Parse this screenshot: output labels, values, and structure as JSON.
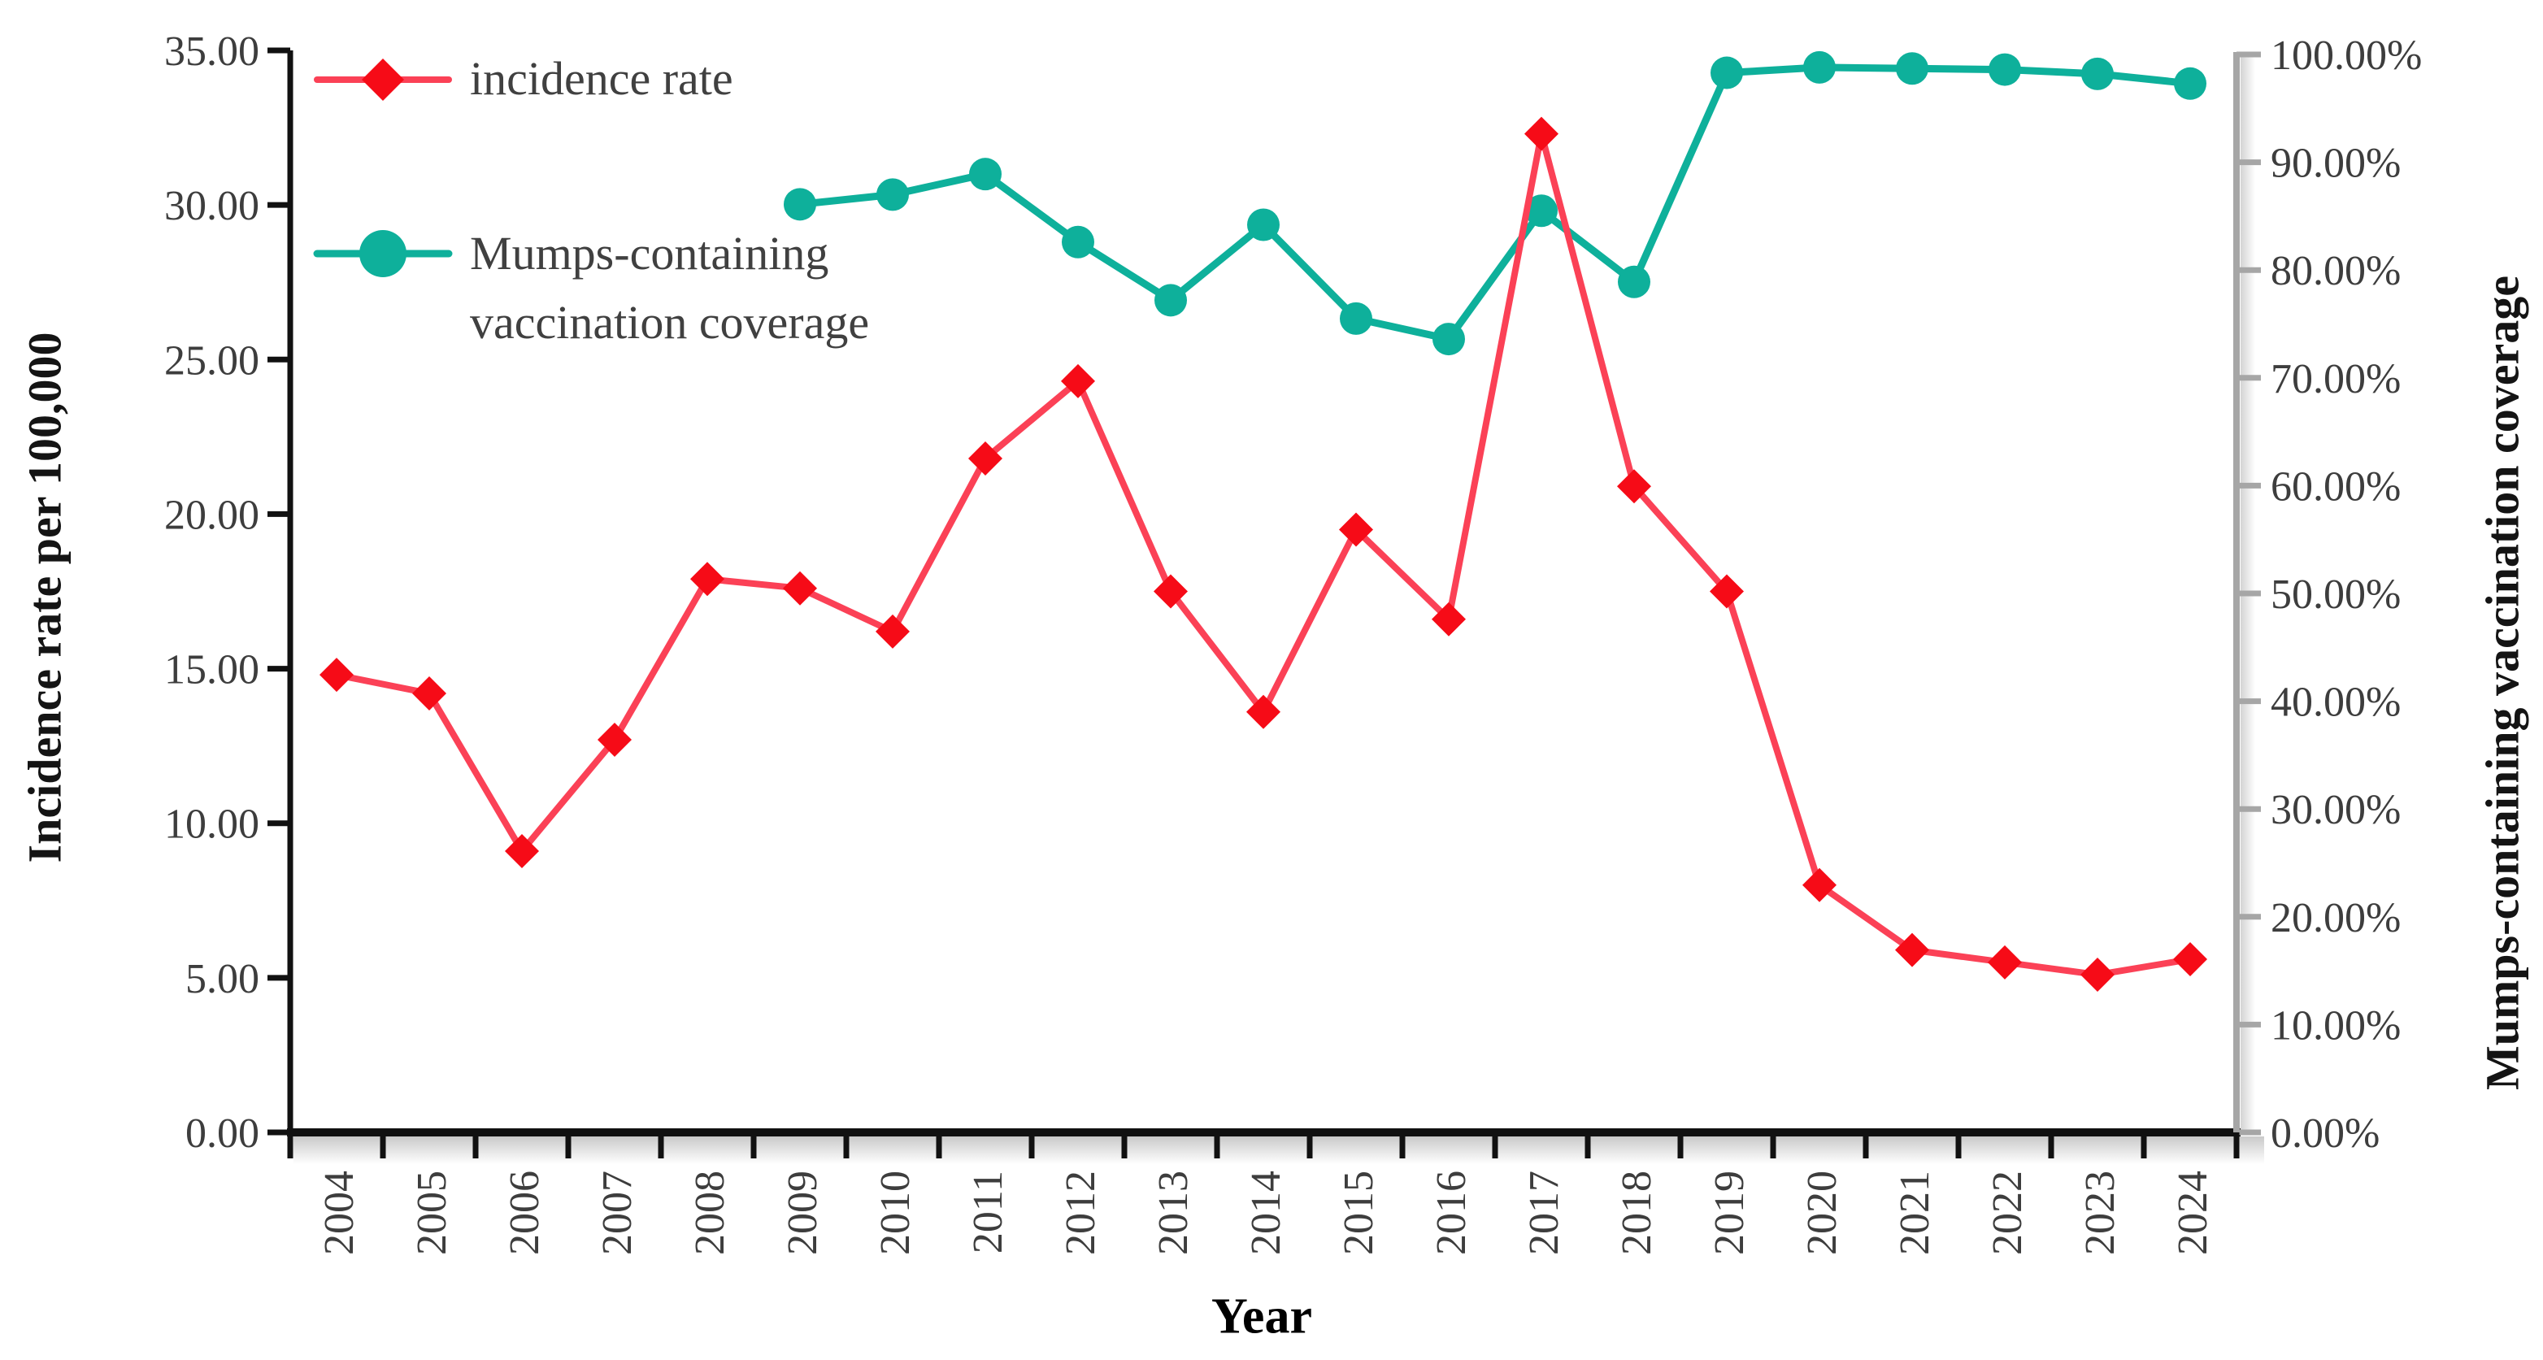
{
  "chart_data": {
    "type": "line",
    "title": "",
    "xlabel": "Year",
    "categories": [
      "2004",
      "2005",
      "2006",
      "2007",
      "2008",
      "2009",
      "2010",
      "2011",
      "2012",
      "2013",
      "2014",
      "2015",
      "2016",
      "2017",
      "2018",
      "2019",
      "2020",
      "2021",
      "2022",
      "2023",
      "2024"
    ],
    "series": [
      {
        "name": "incidence rate",
        "axis": "left",
        "marker": "diamond",
        "line_color": "#FB4156",
        "marker_color": "#F60B17",
        "values": [
          14.8,
          14.2,
          9.1,
          12.7,
          17.9,
          17.6,
          16.2,
          21.8,
          24.3,
          17.5,
          13.6,
          19.5,
          16.6,
          32.3,
          20.9,
          17.5,
          8.0,
          5.9,
          5.5,
          5.1,
          5.6
        ]
      },
      {
        "name": "Mumps-containing vaccination coverage",
        "axis": "right",
        "marker": "circle",
        "line_color": "#0EB09B",
        "marker_color": "#0EB09B",
        "values": [
          null,
          null,
          null,
          null,
          null,
          86.1,
          87.0,
          88.9,
          82.6,
          77.2,
          84.2,
          75.5,
          73.6,
          85.5,
          78.9,
          98.3,
          98.8,
          98.7,
          98.6,
          98.2,
          97.3
        ]
      }
    ],
    "left_axis": {
      "title": "Incidence rate per 100,000",
      "min": 0,
      "max": 35,
      "step": 5,
      "tick_labels": [
        "0.00",
        "5.00",
        "10.00",
        "15.00",
        "20.00",
        "25.00",
        "30.00",
        "35.00"
      ]
    },
    "right_axis": {
      "title": "Mumps-containing vaccination coverage",
      "min": 0,
      "max": 100,
      "step": 10,
      "tick_labels": [
        "0.00%",
        "10.00%",
        "20.00%",
        "30.00%",
        "40.00%",
        "50.00%",
        "60.00%",
        "70.00%",
        "80.00%",
        "90.00%",
        "100.00%"
      ]
    },
    "grid": false,
    "legend_position": "top-left"
  },
  "legend": {
    "item1_label": "incidence rate",
    "item2_label_line1": "Mumps-containing",
    "item2_label_line2": "vaccination coverage"
  },
  "axes_titles": {
    "left": "Incidence rate per 100,000",
    "right": "Mumps-containing vaccination coverage",
    "x": "Year"
  },
  "colors": {
    "incidence_line": "#FB4156",
    "incidence_marker": "#F60B17",
    "coverage_line": "#0EB09B",
    "axis_black": "#111111",
    "axis_grey": "#A6A6A6",
    "tick_text": "#3D3D3D"
  }
}
